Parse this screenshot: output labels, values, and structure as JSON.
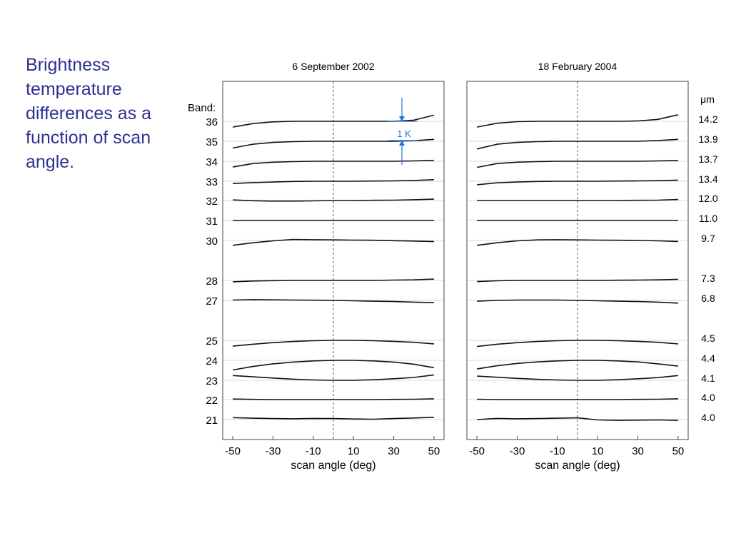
{
  "slide": {
    "caption": "Brightness temperature differences as a function of scan angle.",
    "accent_color": "#2e3192"
  },
  "chart_data": {
    "type": "line",
    "xlabel": "scan angle (deg)",
    "xlim": [
      -55,
      55
    ],
    "xticks": [
      -50,
      -30,
      -10,
      10,
      30,
      50
    ],
    "vline_x": 0,
    "band_header": "Band:",
    "unit_header": "μm",
    "bands": [
      "36",
      "35",
      "34",
      "33",
      "32",
      "31",
      "30",
      "28",
      "27",
      "25",
      "24",
      "23",
      "22",
      "21"
    ],
    "wavelengths": [
      "14.2",
      "13.9",
      "13.7",
      "13.4",
      "12.0",
      "11.0",
      "9.7",
      "7.3",
      "6.8",
      "4.5",
      "4.4",
      "4.1",
      "4.0",
      "4.0"
    ],
    "scale_bar": {
      "label": "1 K",
      "value_K": 1,
      "color": "#1f6fe0"
    },
    "panels": [
      {
        "title": "6 September 2002",
        "series": [
          {
            "band": "36",
            "x": [
              -50,
              -40,
              -30,
              -20,
              -10,
              0,
              10,
              20,
              30,
              40,
              50
            ],
            "y": [
              -0.3,
              -0.12,
              -0.03,
              0,
              0,
              0,
              0,
              0,
              0,
              0.06,
              0.32
            ]
          },
          {
            "band": "35",
            "x": [
              -50,
              -40,
              -30,
              -20,
              -10,
              0,
              10,
              20,
              30,
              40,
              50
            ],
            "y": [
              -0.35,
              -0.15,
              -0.06,
              -0.02,
              0,
              0,
              0,
              0,
              0,
              0.03,
              0.1
            ]
          },
          {
            "band": "34",
            "x": [
              -50,
              -40,
              -30,
              -20,
              -10,
              0,
              10,
              20,
              30,
              40,
              50
            ],
            "y": [
              -0.3,
              -0.12,
              -0.05,
              -0.02,
              0,
              0,
              0,
              0,
              0,
              0.02,
              0.05
            ]
          },
          {
            "band": "33",
            "x": [
              -50,
              -40,
              -30,
              -20,
              -10,
              0,
              10,
              20,
              30,
              40,
              50
            ],
            "y": [
              -0.12,
              -0.07,
              -0.04,
              -0.01,
              0,
              0,
              0,
              0.01,
              0.02,
              0.04,
              0.08
            ]
          },
          {
            "band": "32",
            "x": [
              -50,
              -40,
              -30,
              -20,
              -10,
              0,
              10,
              20,
              30,
              40,
              50
            ],
            "y": [
              0.03,
              -0.01,
              -0.03,
              -0.03,
              -0.02,
              0,
              0,
              0.01,
              0.02,
              0.04,
              0.07
            ]
          },
          {
            "band": "31",
            "x": [
              -50,
              -40,
              -30,
              -20,
              -10,
              0,
              10,
              20,
              30,
              40,
              50
            ],
            "y": [
              0,
              0,
              0,
              0,
              0,
              0,
              0,
              0,
              0,
              0,
              0
            ]
          },
          {
            "band": "30",
            "x": [
              -50,
              -40,
              -30,
              -20,
              -10,
              0,
              10,
              20,
              30,
              40,
              50
            ],
            "y": [
              -0.25,
              -0.12,
              -0.02,
              0.05,
              0.04,
              0.03,
              0.02,
              0.01,
              -0.01,
              -0.03,
              -0.06
            ]
          },
          {
            "band": "28",
            "x": [
              -50,
              -40,
              -30,
              -20,
              -10,
              0,
              10,
              20,
              30,
              40,
              50
            ],
            "y": [
              -0.07,
              -0.03,
              -0.01,
              0,
              0,
              0,
              0,
              0,
              0.02,
              0.03,
              0.07
            ]
          },
          {
            "band": "27",
            "x": [
              -50,
              -40,
              -30,
              -20,
              -10,
              0,
              10,
              20,
              30,
              40,
              50
            ],
            "y": [
              0.02,
              0.04,
              0.03,
              0.02,
              0.01,
              0,
              -0.02,
              -0.04,
              -0.06,
              -0.09,
              -0.12
            ]
          },
          {
            "band": "25",
            "x": [
              -50,
              -40,
              -30,
              -20,
              -10,
              0,
              10,
              20,
              30,
              40,
              50
            ],
            "y": [
              -0.3,
              -0.2,
              -0.12,
              -0.06,
              -0.02,
              0,
              0,
              -0.02,
              -0.05,
              -0.1,
              -0.18
            ]
          },
          {
            "band": "24",
            "x": [
              -50,
              -40,
              -30,
              -20,
              -10,
              0,
              10,
              20,
              30,
              40,
              50
            ],
            "y": [
              -0.5,
              -0.32,
              -0.18,
              -0.09,
              -0.03,
              0,
              0,
              -0.03,
              -0.09,
              -0.2,
              -0.38
            ]
          },
          {
            "band": "23",
            "x": [
              -50,
              -40,
              -30,
              -20,
              -10,
              0,
              10,
              20,
              30,
              40,
              50
            ],
            "y": [
              0.25,
              0.18,
              0.12,
              0.06,
              0.02,
              0,
              0,
              0.03,
              0.08,
              0.15,
              0.28
            ]
          },
          {
            "band": "22",
            "x": [
              -50,
              -40,
              -30,
              -20,
              -10,
              0,
              10,
              20,
              30,
              40,
              50
            ],
            "y": [
              0.03,
              0.01,
              0,
              0,
              0,
              0,
              0,
              0,
              0.01,
              0.02,
              0.04
            ]
          },
          {
            "band": "21",
            "x": [
              -50,
              -40,
              -30,
              -20,
              -10,
              0,
              10,
              20,
              30,
              40,
              50
            ],
            "y": [
              0.1,
              0.07,
              0.05,
              0.04,
              0.06,
              0.05,
              0.03,
              0.02,
              0.05,
              0.08,
              0.12
            ]
          }
        ]
      },
      {
        "title": "18 February 2004",
        "series": [
          {
            "band": "36",
            "x": [
              -50,
              -40,
              -30,
              -20,
              -10,
              0,
              10,
              20,
              30,
              40,
              50
            ],
            "y": [
              -0.3,
              -0.1,
              -0.02,
              0,
              0,
              0,
              0,
              0,
              0.02,
              0.1,
              0.34
            ]
          },
          {
            "band": "35",
            "x": [
              -50,
              -40,
              -30,
              -20,
              -10,
              0,
              10,
              20,
              30,
              40,
              50
            ],
            "y": [
              -0.4,
              -0.15,
              -0.06,
              -0.02,
              0,
              0,
              0,
              0,
              0,
              0.04,
              0.1
            ]
          },
          {
            "band": "34",
            "x": [
              -50,
              -40,
              -30,
              -20,
              -10,
              0,
              10,
              20,
              30,
              40,
              50
            ],
            "y": [
              -0.32,
              -0.12,
              -0.05,
              -0.02,
              0,
              0,
              0,
              0,
              0,
              0.02,
              0.04
            ]
          },
          {
            "band": "33",
            "x": [
              -50,
              -40,
              -30,
              -20,
              -10,
              0,
              10,
              20,
              30,
              40,
              50
            ],
            "y": [
              -0.18,
              -0.08,
              -0.04,
              -0.01,
              0,
              0,
              0,
              0.01,
              0.02,
              0.03,
              0.06
            ]
          },
          {
            "band": "32",
            "x": [
              -50,
              -40,
              -30,
              -20,
              -10,
              0,
              10,
              20,
              30,
              40,
              50
            ],
            "y": [
              0,
              0,
              0,
              0,
              0,
              0,
              0,
              0,
              0.01,
              0.02,
              0.05
            ]
          },
          {
            "band": "31",
            "x": [
              -50,
              -40,
              -30,
              -20,
              -10,
              0,
              10,
              20,
              30,
              40,
              50
            ],
            "y": [
              0,
              0,
              0,
              0,
              0,
              0,
              0,
              0,
              0,
              0,
              0
            ]
          },
          {
            "band": "30",
            "x": [
              -50,
              -40,
              -30,
              -20,
              -10,
              0,
              10,
              20,
              30,
              40,
              50
            ],
            "y": [
              -0.25,
              -0.12,
              -0.02,
              0.03,
              0.04,
              0.03,
              0.02,
              0.01,
              0,
              -0.02,
              -0.05
            ]
          },
          {
            "band": "28",
            "x": [
              -50,
              -40,
              -30,
              -20,
              -10,
              0,
              10,
              20,
              30,
              40,
              50
            ],
            "y": [
              -0.06,
              -0.02,
              0,
              0,
              0,
              0,
              0,
              0.01,
              0.02,
              0.03,
              0.06
            ]
          },
          {
            "band": "27",
            "x": [
              -50,
              -40,
              -30,
              -20,
              -10,
              0,
              10,
              20,
              30,
              40,
              50
            ],
            "y": [
              -0.04,
              0,
              0.02,
              0.02,
              0.02,
              0,
              -0.02,
              -0.04,
              -0.06,
              -0.09,
              -0.14
            ]
          },
          {
            "band": "25",
            "x": [
              -50,
              -40,
              -30,
              -20,
              -10,
              0,
              10,
              20,
              30,
              40,
              50
            ],
            "y": [
              -0.32,
              -0.2,
              -0.12,
              -0.06,
              -0.02,
              0,
              0,
              -0.02,
              -0.05,
              -0.1,
              -0.18
            ]
          },
          {
            "band": "24",
            "x": [
              -50,
              -40,
              -30,
              -20,
              -10,
              0,
              10,
              20,
              30,
              40,
              50
            ],
            "y": [
              -0.45,
              -0.28,
              -0.16,
              -0.08,
              -0.03,
              0,
              0,
              -0.03,
              -0.08,
              -0.18,
              -0.3
            ]
          },
          {
            "band": "23",
            "x": [
              -50,
              -40,
              -30,
              -20,
              -10,
              0,
              10,
              20,
              30,
              40,
              50
            ],
            "y": [
              0.22,
              0.16,
              0.1,
              0.05,
              0.02,
              0,
              0,
              0.03,
              0.08,
              0.14,
              0.25
            ]
          },
          {
            "band": "22",
            "x": [
              -50,
              -40,
              -30,
              -20,
              -10,
              0,
              10,
              20,
              30,
              40,
              50
            ],
            "y": [
              0.02,
              0,
              0,
              0,
              0,
              0,
              0,
              0,
              0.01,
              0.02,
              0.04
            ]
          },
          {
            "band": "21",
            "x": [
              -50,
              -40,
              -30,
              -20,
              -10,
              0,
              10,
              20,
              30,
              40,
              50
            ],
            "y": [
              0,
              0.06,
              0.04,
              0.05,
              0.07,
              0.09,
              -0.02,
              -0.04,
              -0.03,
              -0.02,
              -0.04
            ]
          }
        ]
      }
    ]
  }
}
